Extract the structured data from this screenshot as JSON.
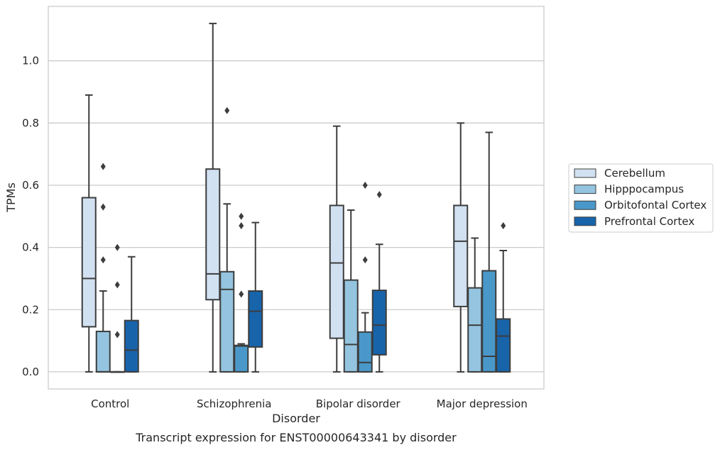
{
  "chart_data": {
    "type": "boxplot",
    "title": "",
    "caption": "Transcript expression for ENST00000643341 by disorder",
    "xlabel": "Disorder",
    "ylabel": "TPMs",
    "ylim": [
      -0.055,
      1.175
    ],
    "yticks": [
      0.0,
      0.2,
      0.4,
      0.6,
      0.8,
      1.0
    ],
    "ytick_labels": [
      "0.0",
      "0.2",
      "0.4",
      "0.6",
      "0.8",
      "1.0"
    ],
    "grid": "horizontal",
    "legend_position": "right",
    "categories": [
      "Control",
      "Schizophrenia",
      "Bipolar disorder",
      "Major depression"
    ],
    "series": [
      {
        "name": "Cerebellum",
        "color": "#d1e1f1",
        "boxes": [
          {
            "whisker_low": 0.0,
            "q1": 0.145,
            "median": 0.3,
            "q3": 0.56,
            "whisker_high": 0.89,
            "outliers": []
          },
          {
            "whisker_low": 0.0,
            "q1": 0.232,
            "median": 0.315,
            "q3": 0.652,
            "whisker_high": 1.12,
            "outliers": []
          },
          {
            "whisker_low": 0.0,
            "q1": 0.108,
            "median": 0.35,
            "q3": 0.535,
            "whisker_high": 0.79,
            "outliers": []
          },
          {
            "whisker_low": 0.0,
            "q1": 0.21,
            "median": 0.42,
            "q3": 0.535,
            "whisker_high": 0.8,
            "outliers": []
          }
        ]
      },
      {
        "name": "Hipppocampus",
        "color": "#94c4df",
        "boxes": [
          {
            "whisker_low": 0.0,
            "q1": 0.0,
            "median": 0.0,
            "q3": 0.13,
            "whisker_high": 0.26,
            "outliers": [
              0.36,
              0.53,
              0.66
            ]
          },
          {
            "whisker_low": 0.0,
            "q1": 0.0,
            "median": 0.265,
            "q3": 0.322,
            "whisker_high": 0.54,
            "outliers": [
              0.84
            ]
          },
          {
            "whisker_low": 0.0,
            "q1": 0.0,
            "median": 0.088,
            "q3": 0.295,
            "whisker_high": 0.52,
            "outliers": []
          },
          {
            "whisker_low": 0.0,
            "q1": 0.0,
            "median": 0.15,
            "q3": 0.27,
            "whisker_high": 0.43,
            "outliers": []
          }
        ]
      },
      {
        "name": "Orbitofontal Cortex",
        "color": "#4a98c9",
        "boxes": [
          {
            "whisker_low": 0.0,
            "q1": 0.0,
            "median": 0.0,
            "q3": 0.0,
            "whisker_high": 0.0,
            "outliers": [
              0.12,
              0.28,
              0.4
            ]
          },
          {
            "whisker_low": 0.0,
            "q1": 0.0,
            "median": 0.083,
            "q3": 0.085,
            "whisker_high": 0.09,
            "outliers": [
              0.25,
              0.47,
              0.5
            ]
          },
          {
            "whisker_low": 0.0,
            "q1": 0.0,
            "median": 0.03,
            "q3": 0.128,
            "whisker_high": 0.19,
            "outliers": [
              0.36,
              0.6
            ]
          },
          {
            "whisker_low": 0.0,
            "q1": 0.0,
            "median": 0.05,
            "q3": 0.325,
            "whisker_high": 0.77,
            "outliers": []
          }
        ]
      },
      {
        "name": "Prefrontal Cortex",
        "color": "#1764ab",
        "boxes": [
          {
            "whisker_low": 0.0,
            "q1": 0.0,
            "median": 0.07,
            "q3": 0.165,
            "whisker_high": 0.37,
            "outliers": []
          },
          {
            "whisker_low": 0.0,
            "q1": 0.08,
            "median": 0.195,
            "q3": 0.26,
            "whisker_high": 0.48,
            "outliers": []
          },
          {
            "whisker_low": 0.0,
            "q1": 0.055,
            "median": 0.15,
            "q3": 0.262,
            "whisker_high": 0.41,
            "outliers": [
              0.57
            ]
          },
          {
            "whisker_low": 0.0,
            "q1": 0.0,
            "median": 0.115,
            "q3": 0.17,
            "whisker_high": 0.39,
            "outliers": [
              0.47
            ]
          }
        ]
      }
    ]
  }
}
